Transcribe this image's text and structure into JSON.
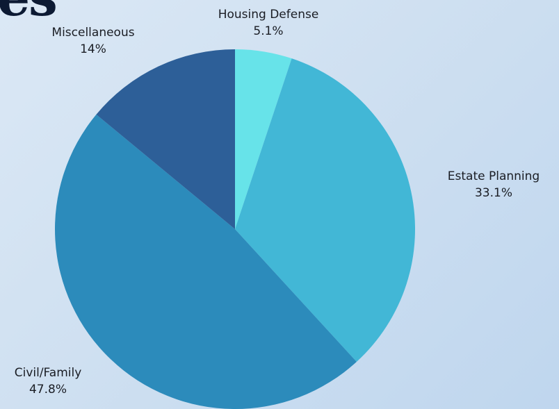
{
  "heading_fragment": "es",
  "chart_data": {
    "type": "pie",
    "start_angle_deg": 0,
    "direction": "clockwise",
    "slices": [
      {
        "label": "Housing Defense",
        "value": 5.1,
        "display": "5.1%",
        "color": "#67e3e9"
      },
      {
        "label": "Estate Planning",
        "value": 33.1,
        "display": "33.1%",
        "color": "#42b7d6"
      },
      {
        "label": "Civil/Family",
        "value": 47.8,
        "display": "47.8%",
        "color": "#2c8bbb"
      },
      {
        "label": "Miscellaneous",
        "value": 14,
        "display": "14%",
        "color": "#2d5f98"
      }
    ]
  }
}
